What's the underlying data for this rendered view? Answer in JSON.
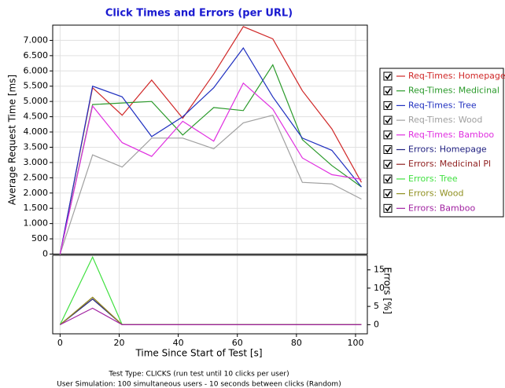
{
  "chart_data": {
    "type": "line",
    "title": "Click Times and Errors (per URL)",
    "x_label": "Time Since Start of Test [s]",
    "y_label": "Average Request Time [ms]",
    "y2_label": "Errors [%]",
    "notes": [
      "Test Type: CLICKS (run test until 10 clicks per user)",
      "User Simulation: 100 simultaneous users - 10 seconds between clicks (Random)"
    ],
    "x": [
      0,
      11,
      21,
      31,
      41.5,
      52,
      62,
      72,
      82,
      92,
      102
    ],
    "xlim": [
      -2.5,
      104
    ],
    "xticks": [
      0,
      20,
      40,
      60,
      80,
      100
    ],
    "ylim": [
      0,
      7500
    ],
    "yticks": [
      0,
      {
        "value": 500,
        "label": "500"
      },
      {
        "value": 1000,
        "label": "1.000"
      },
      {
        "value": 1500,
        "label": "1.500"
      },
      {
        "value": 2000,
        "label": "2.000"
      },
      {
        "value": 2500,
        "label": "2.500"
      },
      {
        "value": 3000,
        "label": "3.000"
      },
      {
        "value": 3500,
        "label": "3.500"
      },
      {
        "value": 4000,
        "label": "4.000"
      },
      {
        "value": 4500,
        "label": "4.500"
      },
      {
        "value": 5000,
        "label": "5.000"
      },
      {
        "value": 5500,
        "label": "5.500"
      },
      {
        "value": 6000,
        "label": "6.000"
      },
      {
        "value": 6500,
        "label": "6.500"
      },
      {
        "value": 7000,
        "label": "7.000"
      }
    ],
    "y2lim": [
      -2.5,
      19
    ],
    "y2ticks": [
      0,
      5,
      10,
      15
    ],
    "grid": true,
    "series": [
      {
        "name": "Req-Times: Homepage",
        "color": "#d02828",
        "values": [
          0,
          5450,
          4550,
          5700,
          4450,
          5900,
          7450,
          7050,
          5350,
          4100,
          2350
        ]
      },
      {
        "name": "Req-Times: Medicinal",
        "color": "#2a9a2a",
        "values": [
          0,
          4900,
          4950,
          5000,
          3900,
          4800,
          4700,
          6200,
          3750,
          2900,
          2200
        ]
      },
      {
        "name": "Req-Times: Tree",
        "color": "#2030c0",
        "values": [
          0,
          5500,
          5150,
          3850,
          4500,
          5450,
          6750,
          5150,
          3800,
          3400,
          2200
        ]
      },
      {
        "name": "Req-Times: Wood",
        "color": "#a0a0a0",
        "values": [
          0,
          3250,
          2850,
          3800,
          3800,
          3450,
          4300,
          4550,
          2350,
          2300,
          1800
        ]
      },
      {
        "name": "Req-Times: Bamboo",
        "color": "#e030e0",
        "values": [
          0,
          4850,
          3650,
          3200,
          4350,
          3700,
          5600,
          4750,
          3150,
          2600,
          2450
        ]
      },
      {
        "name": "Errors: Homepage",
        "color": "#202080",
        "axis": "y2",
        "values": [
          0,
          7,
          0,
          0,
          0,
          0,
          0,
          0,
          0,
          0,
          0
        ]
      },
      {
        "name": "Errors: Medicinal Pl",
        "color": "#902020",
        "axis": "y2",
        "values": [
          0,
          7.5,
          0,
          0,
          0,
          0,
          0,
          0,
          0,
          0,
          0
        ]
      },
      {
        "name": "Errors: Tree",
        "color": "#40e040",
        "axis": "y2",
        "values": [
          0,
          18.5,
          0,
          0,
          0,
          0,
          0,
          0,
          0,
          0,
          0
        ]
      },
      {
        "name": "Errors: Wood",
        "color": "#909020",
        "axis": "y2",
        "values": [
          0,
          7.5,
          0,
          0,
          0,
          0,
          0,
          0,
          0,
          0,
          0
        ]
      },
      {
        "name": "Errors: Bamboo",
        "color": "#a020a0",
        "axis": "y2",
        "values": [
          0,
          4.5,
          0,
          0,
          0,
          0,
          0,
          0,
          0,
          0,
          0
        ]
      }
    ]
  }
}
